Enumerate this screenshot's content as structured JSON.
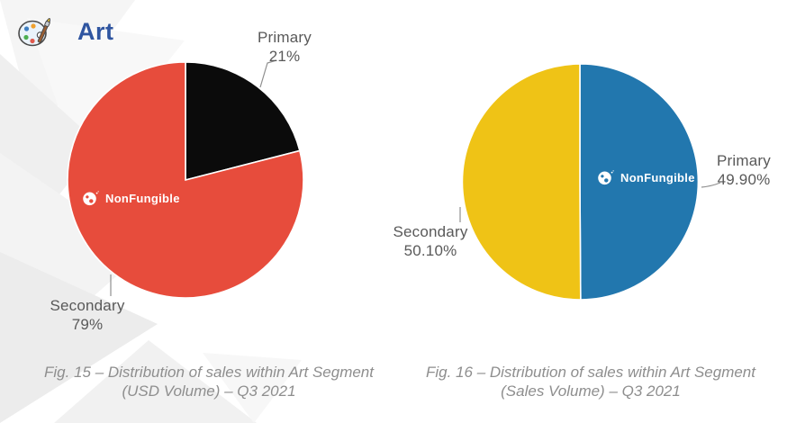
{
  "header": {
    "title": "Art"
  },
  "watermark": {
    "label": "NonFungible"
  },
  "colors": {
    "title_blue": "#2f55a0",
    "label_gray": "#595959",
    "caption_gray": "#8e8e8e",
    "primary_fig15": "#0b0b0b",
    "secondary_fig15": "#e74c3c",
    "primary_fig16": "#2277ae",
    "secondary_fig16": "#efc316"
  },
  "chart_data": [
    {
      "type": "pie",
      "figure": "Fig. 15",
      "title": "Fig. 15 – Distribution of sales within Art Segment (USD Volume) – Q3 2021",
      "caption_line1": "Fig. 15 – Distribution of sales within Art Segment",
      "caption_line2": "(USD Volume) – Q3 2021",
      "labels": [
        "Primary",
        "Secondary"
      ],
      "values": [
        21,
        79
      ],
      "value_labels": [
        "21%",
        "79%"
      ],
      "colors": [
        "#0b0b0b",
        "#e74c3c"
      ],
      "start_angle_deg": 0,
      "direction": "clockwise",
      "legend_position": "outside-callouts"
    },
    {
      "type": "pie",
      "figure": "Fig. 16",
      "title": "Fig. 16 – Distribution of sales within Art Segment (Sales Volume) – Q3 2021",
      "caption_line1": "Fig. 16 – Distribution of sales within Art Segment",
      "caption_line2": "(Sales Volume) – Q3 2021",
      "labels": [
        "Primary",
        "Secondary"
      ],
      "values": [
        49.9,
        50.1
      ],
      "value_labels": [
        "49.90%",
        "50.10%"
      ],
      "colors": [
        "#2277ae",
        "#efc316"
      ],
      "start_angle_deg": 0,
      "direction": "clockwise",
      "legend_position": "outside-callouts"
    }
  ]
}
